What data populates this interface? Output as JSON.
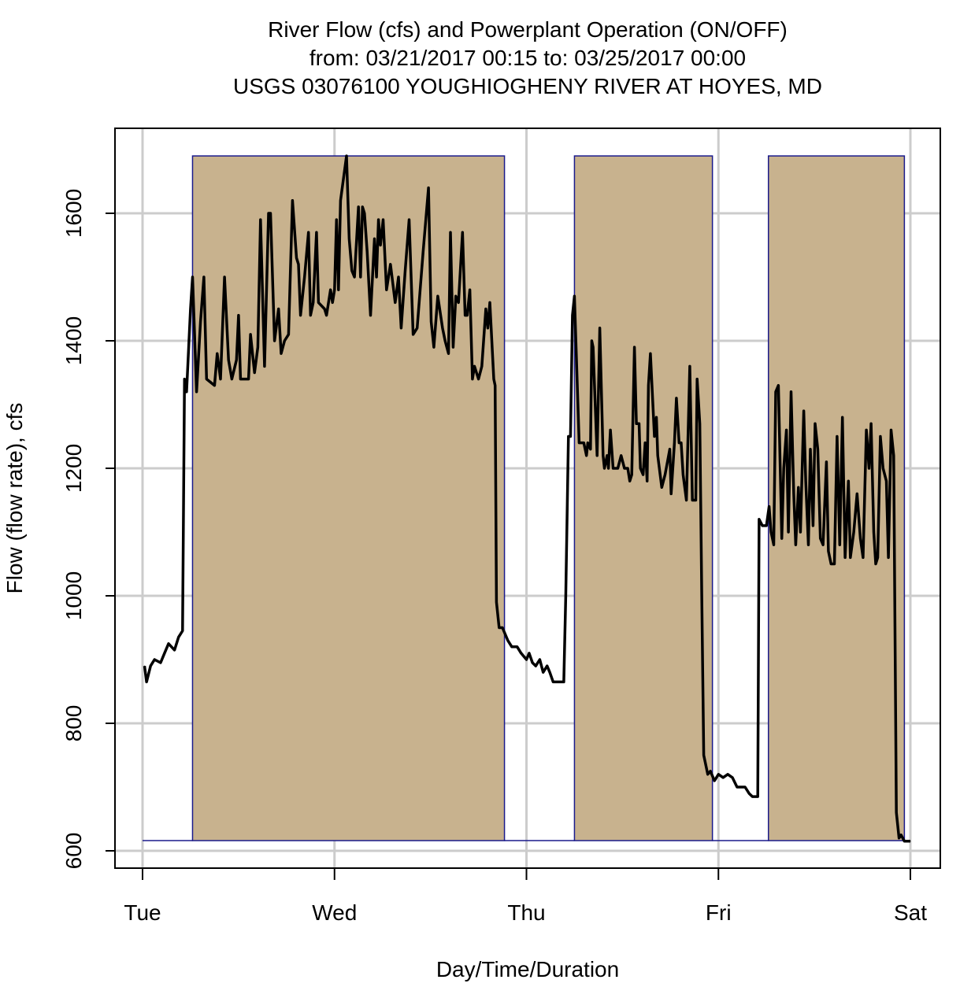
{
  "chart_data": {
    "type": "line",
    "title_lines": [
      "River Flow (cfs) and Powerplant Operation (ON/OFF)",
      "from: 03/21/2017 00:15 to: 03/25/2017 00:00",
      "USGS 03076100 YOUGHIOGHENY RIVER AT HOYES, MD"
    ],
    "xlabel": "Day/Time/Duration",
    "ylabel": "Flow (flow rate), cfs",
    "x_ticks": [
      {
        "date": "03/21 00:00",
        "label": "Tue"
      },
      {
        "date": "03/22 00:00",
        "label": "Wed"
      },
      {
        "date": "03/23 00:00",
        "label": "Thu"
      },
      {
        "date": "03/24 00:00",
        "label": "Fri"
      },
      {
        "date": "03/25 00:00",
        "label": "Sat"
      }
    ],
    "y_ticks": [
      "600",
      "800",
      "1000",
      "1200",
      "1400",
      "1600"
    ],
    "xlim": [
      "03/21 00:00",
      "03/25 00:00"
    ],
    "ylim": [
      600,
      1690
    ],
    "grid": true,
    "colors": {
      "flow_line": "#000000",
      "operation_fill": "#C8B28E",
      "operation_line": "#1A1A8C",
      "grid": "#CCCCCC"
    },
    "operation": {
      "on_level": 1690,
      "off_level": 616,
      "on_periods": [
        [
          "03/21 06:15",
          "03/22 21:15"
        ],
        [
          "03/23 06:00",
          "03/23 23:15"
        ],
        [
          "03/24 06:15",
          "03/24 23:15"
        ]
      ]
    },
    "flow_series": [
      [
        "03/21 00:15",
        890
      ],
      [
        "03/21 00:30",
        865
      ],
      [
        "03/21 01:00",
        890
      ],
      [
        "03/21 01:30",
        900
      ],
      [
        "03/21 02:15",
        895
      ],
      [
        "03/21 02:45",
        910
      ],
      [
        "03/21 03:15",
        925
      ],
      [
        "03/21 04:00",
        915
      ],
      [
        "03/21 04:30",
        935
      ],
      [
        "03/21 05:00",
        945
      ],
      [
        "03/21 05:15",
        1340
      ],
      [
        "03/21 05:30",
        1320
      ],
      [
        "03/21 06:00",
        1450
      ],
      [
        "03/21 06:15",
        1500
      ],
      [
        "03/21 06:45",
        1320
      ],
      [
        "03/21 07:15",
        1430
      ],
      [
        "03/21 07:40",
        1500
      ],
      [
        "03/21 08:00",
        1340
      ],
      [
        "03/21 09:00",
        1330
      ],
      [
        "03/21 09:20",
        1380
      ],
      [
        "03/21 09:45",
        1340
      ],
      [
        "03/21 10:15",
        1500
      ],
      [
        "03/21 10:45",
        1370
      ],
      [
        "03/21 11:10",
        1340
      ],
      [
        "03/21 11:45",
        1370
      ],
      [
        "03/21 12:00",
        1440
      ],
      [
        "03/21 12:15",
        1340
      ],
      [
        "03/21 13:15",
        1340
      ],
      [
        "03/21 13:30",
        1410
      ],
      [
        "03/21 14:00",
        1350
      ],
      [
        "03/21 14:25",
        1390
      ],
      [
        "03/21 14:45",
        1590
      ],
      [
        "03/21 15:15",
        1360
      ],
      [
        "03/21 15:45",
        1600
      ],
      [
        "03/21 16:00",
        1600
      ],
      [
        "03/21 16:30",
        1400
      ],
      [
        "03/21 17:00",
        1450
      ],
      [
        "03/21 17:20",
        1380
      ],
      [
        "03/21 17:45",
        1400
      ],
      [
        "03/21 18:15",
        1410
      ],
      [
        "03/21 18:45",
        1620
      ],
      [
        "03/21 19:15",
        1530
      ],
      [
        "03/21 19:30",
        1520
      ],
      [
        "03/21 19:45",
        1440
      ],
      [
        "03/21 20:15",
        1500
      ],
      [
        "03/21 20:45",
        1570
      ],
      [
        "03/21 21:00",
        1440
      ],
      [
        "03/21 21:20",
        1460
      ],
      [
        "03/21 21:45",
        1570
      ],
      [
        "03/21 22:00",
        1460
      ],
      [
        "03/21 22:45",
        1450
      ],
      [
        "03/21 23:00",
        1440
      ],
      [
        "03/21 23:30",
        1480
      ],
      [
        "03/21 23:45",
        1460
      ],
      [
        "03/22 00:00",
        1480
      ],
      [
        "03/22 00:15",
        1590
      ],
      [
        "03/22 00:30",
        1480
      ],
      [
        "03/22 00:45",
        1620
      ],
      [
        "03/22 01:30",
        1690
      ],
      [
        "03/22 01:50",
        1560
      ],
      [
        "03/22 02:10",
        1510
      ],
      [
        "03/22 02:30",
        1500
      ],
      [
        "03/22 03:00",
        1610
      ],
      [
        "03/22 03:15",
        1500
      ],
      [
        "03/22 03:30",
        1610
      ],
      [
        "03/22 03:45",
        1600
      ],
      [
        "03/22 04:05",
        1540
      ],
      [
        "03/22 04:30",
        1440
      ],
      [
        "03/22 05:00",
        1560
      ],
      [
        "03/22 05:15",
        1500
      ],
      [
        "03/22 05:30",
        1590
      ],
      [
        "03/22 05:45",
        1550
      ],
      [
        "03/22 06:05",
        1590
      ],
      [
        "03/22 06:30",
        1480
      ],
      [
        "03/22 07:00",
        1520
      ],
      [
        "03/22 07:35",
        1460
      ],
      [
        "03/22 08:00",
        1500
      ],
      [
        "03/22 08:20",
        1420
      ],
      [
        "03/22 08:50",
        1510
      ],
      [
        "03/22 09:20",
        1590
      ],
      [
        "03/22 09:50",
        1410
      ],
      [
        "03/22 10:20",
        1420
      ],
      [
        "03/22 11:05",
        1540
      ],
      [
        "03/22 11:45",
        1640
      ],
      [
        "03/22 12:05",
        1430
      ],
      [
        "03/22 12:25",
        1390
      ],
      [
        "03/22 12:55",
        1470
      ],
      [
        "03/22 13:30",
        1420
      ],
      [
        "03/22 13:50",
        1400
      ],
      [
        "03/22 14:15",
        1380
      ],
      [
        "03/22 14:30",
        1570
      ],
      [
        "03/22 14:50",
        1390
      ],
      [
        "03/22 15:10",
        1470
      ],
      [
        "03/22 15:30",
        1460
      ],
      [
        "03/22 16:00",
        1570
      ],
      [
        "03/22 16:20",
        1440
      ],
      [
        "03/22 16:35",
        1440
      ],
      [
        "03/22 16:55",
        1480
      ],
      [
        "03/22 17:15",
        1340
      ],
      [
        "03/22 17:30",
        1360
      ],
      [
        "03/22 18:00",
        1340
      ],
      [
        "03/22 18:25",
        1360
      ],
      [
        "03/22 18:55",
        1450
      ],
      [
        "03/22 19:10",
        1420
      ],
      [
        "03/22 19:25",
        1460
      ],
      [
        "03/22 19:55",
        1340
      ],
      [
        "03/22 20:05",
        1330
      ],
      [
        "03/22 20:15",
        990
      ],
      [
        "03/22 20:35",
        950
      ],
      [
        "03/22 21:00",
        950
      ],
      [
        "03/22 21:20",
        940
      ],
      [
        "03/22 21:40",
        930
      ],
      [
        "03/22 22:10",
        920
      ],
      [
        "03/22 22:50",
        920
      ],
      [
        "03/22 23:20",
        910
      ],
      [
        "03/23 00:00",
        900
      ],
      [
        "03/23 00:20",
        910
      ],
      [
        "03/23 00:45",
        895
      ],
      [
        "03/23 01:10",
        890
      ],
      [
        "03/23 01:40",
        900
      ],
      [
        "03/23 02:05",
        880
      ],
      [
        "03/23 02:35",
        890
      ],
      [
        "03/23 02:55",
        880
      ],
      [
        "03/23 03:20",
        865
      ],
      [
        "03/23 04:40",
        865
      ],
      [
        "03/23 04:55",
        1000
      ],
      [
        "03/23 05:15",
        1250
      ],
      [
        "03/23 05:30",
        1250
      ],
      [
        "03/23 05:45",
        1440
      ],
      [
        "03/23 06:00",
        1470
      ],
      [
        "03/23 06:35",
        1240
      ],
      [
        "03/23 07:10",
        1240
      ],
      [
        "03/23 07:30",
        1220
      ],
      [
        "03/23 07:40",
        1240
      ],
      [
        "03/23 08:00",
        1230
      ],
      [
        "03/23 08:10",
        1400
      ],
      [
        "03/23 08:20",
        1390
      ],
      [
        "03/23 08:50",
        1220
      ],
      [
        "03/23 09:10",
        1420
      ],
      [
        "03/23 09:35",
        1220
      ],
      [
        "03/23 09:45",
        1200
      ],
      [
        "03/23 10:05",
        1220
      ],
      [
        "03/23 10:15",
        1200
      ],
      [
        "03/23 10:30",
        1260
      ],
      [
        "03/23 10:50",
        1200
      ],
      [
        "03/23 11:25",
        1200
      ],
      [
        "03/23 11:50",
        1220
      ],
      [
        "03/23 12:15",
        1200
      ],
      [
        "03/23 12:40",
        1200
      ],
      [
        "03/23 12:55",
        1180
      ],
      [
        "03/23 13:10",
        1190
      ],
      [
        "03/23 13:30",
        1390
      ],
      [
        "03/23 13:45",
        1270
      ],
      [
        "03/23 14:05",
        1270
      ],
      [
        "03/23 14:15",
        1200
      ],
      [
        "03/23 14:35",
        1190
      ],
      [
        "03/23 14:50",
        1240
      ],
      [
        "03/23 15:05",
        1180
      ],
      [
        "03/23 15:15",
        1330
      ],
      [
        "03/23 15:30",
        1380
      ],
      [
        "03/23 16:00",
        1250
      ],
      [
        "03/23 16:15",
        1280
      ],
      [
        "03/23 16:25",
        1220
      ],
      [
        "03/23 16:55",
        1170
      ],
      [
        "03/23 17:20",
        1190
      ],
      [
        "03/23 17:55",
        1230
      ],
      [
        "03/23 18:05",
        1160
      ],
      [
        "03/23 18:30",
        1240
      ],
      [
        "03/23 18:45",
        1310
      ],
      [
        "03/23 19:05",
        1240
      ],
      [
        "03/23 19:20",
        1240
      ],
      [
        "03/23 19:35",
        1190
      ],
      [
        "03/23 20:00",
        1150
      ],
      [
        "03/23 20:25",
        1360
      ],
      [
        "03/23 20:45",
        1150
      ],
      [
        "03/23 21:10",
        1150
      ],
      [
        "03/23 21:20",
        1340
      ],
      [
        "03/23 21:40",
        1270
      ],
      [
        "03/23 21:55",
        1000
      ],
      [
        "03/23 22:10",
        750
      ],
      [
        "03/23 22:40",
        720
      ],
      [
        "03/23 23:00",
        725
      ],
      [
        "03/23 23:30",
        710
      ],
      [
        "03/24 00:00",
        720
      ],
      [
        "03/24 00:35",
        715
      ],
      [
        "03/24 01:10",
        720
      ],
      [
        "03/24 01:45",
        715
      ],
      [
        "03/24 02:20",
        700
      ],
      [
        "03/24 02:50",
        700
      ],
      [
        "03/24 03:20",
        700
      ],
      [
        "03/24 03:50",
        690
      ],
      [
        "03/24 04:15",
        685
      ],
      [
        "03/24 04:55",
        685
      ],
      [
        "03/24 05:05",
        1120
      ],
      [
        "03/24 05:30",
        1110
      ],
      [
        "03/24 06:00",
        1110
      ],
      [
        "03/24 06:20",
        1140
      ],
      [
        "03/24 06:35",
        1100
      ],
      [
        "03/24 06:55",
        1080
      ],
      [
        "03/24 07:10",
        1320
      ],
      [
        "03/24 07:30",
        1330
      ],
      [
        "03/24 07:55",
        1090
      ],
      [
        "03/24 08:10",
        1200
      ],
      [
        "03/24 08:30",
        1260
      ],
      [
        "03/24 08:45",
        1100
      ],
      [
        "03/24 09:05",
        1320
      ],
      [
        "03/24 09:25",
        1160
      ],
      [
        "03/24 09:40",
        1080
      ],
      [
        "03/24 10:00",
        1170
      ],
      [
        "03/24 10:15",
        1100
      ],
      [
        "03/24 10:40",
        1290
      ],
      [
        "03/24 10:55",
        1180
      ],
      [
        "03/24 11:15",
        1080
      ],
      [
        "03/24 11:30",
        1230
      ],
      [
        "03/24 11:50",
        1110
      ],
      [
        "03/24 12:05",
        1270
      ],
      [
        "03/24 12:25",
        1230
      ],
      [
        "03/24 12:45",
        1090
      ],
      [
        "03/24 13:05",
        1080
      ],
      [
        "03/24 13:30",
        1210
      ],
      [
        "03/24 13:45",
        1070
      ],
      [
        "03/24 14:05",
        1050
      ],
      [
        "03/24 14:30",
        1050
      ],
      [
        "03/24 14:50",
        1250
      ],
      [
        "03/24 15:10",
        1080
      ],
      [
        "03/24 15:30",
        1280
      ],
      [
        "03/24 15:50",
        1060
      ],
      [
        "03/24 16:15",
        1180
      ],
      [
        "03/24 16:30",
        1060
      ],
      [
        "03/24 16:55",
        1100
      ],
      [
        "03/24 17:20",
        1160
      ],
      [
        "03/24 17:45",
        1090
      ],
      [
        "03/24 18:05",
        1060
      ],
      [
        "03/24 18:30",
        1260
      ],
      [
        "03/24 18:50",
        1200
      ],
      [
        "03/24 19:05",
        1270
      ],
      [
        "03/24 19:25",
        1100
      ],
      [
        "03/24 19:40",
        1050
      ],
      [
        "03/24 19:55",
        1060
      ],
      [
        "03/24 20:15",
        1250
      ],
      [
        "03/24 20:35",
        1200
      ],
      [
        "03/24 21:00",
        1180
      ],
      [
        "03/24 21:15",
        1060
      ],
      [
        "03/24 21:35",
        1260
      ],
      [
        "03/24 21:55",
        1220
      ],
      [
        "03/24 22:15",
        660
      ],
      [
        "03/24 22:35",
        620
      ],
      [
        "03/24 22:50",
        625
      ],
      [
        "03/24 23:15",
        615
      ],
      [
        "03/25 00:00",
        615
      ]
    ]
  }
}
